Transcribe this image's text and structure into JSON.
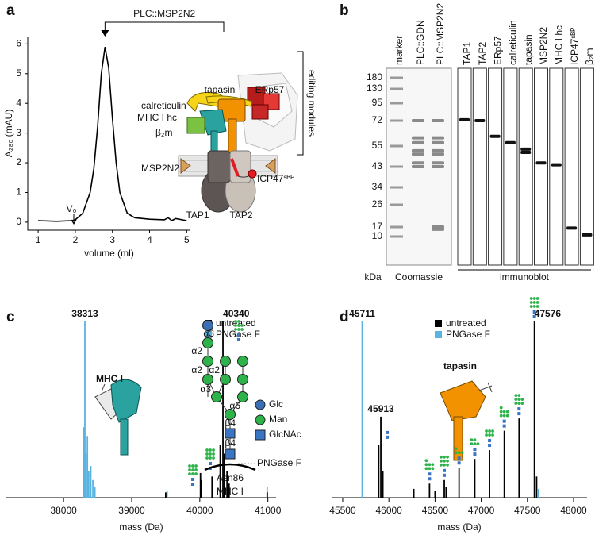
{
  "panels": [
    "a",
    "b",
    "c",
    "d"
  ],
  "chart_data": [
    {
      "type": "line",
      "x": [
        1,
        1.5,
        1.9,
        2.0,
        2.2,
        2.4,
        2.5,
        2.6,
        2.7,
        2.8,
        2.9,
        3.0,
        3.1,
        3.2,
        3.4,
        3.6,
        4.0,
        4.4,
        4.5,
        4.6,
        4.7,
        5.0
      ],
      "series": [
        {
          "color": "#000000",
          "values": [
            0.05,
            0.03,
            0.05,
            0.08,
            0.3,
            1.0,
            1.8,
            3.2,
            5.0,
            5.9,
            5.2,
            3.5,
            2.0,
            1.0,
            0.3,
            0.15,
            0.1,
            0.08,
            0.15,
            0.05,
            0.12,
            0.05
          ]
        }
      ],
      "xlim": [
        0.72,
        5.1
      ],
      "ylim": [
        -0.27,
        6.25
      ],
      "xticks": [
        1,
        2,
        3,
        4,
        5
      ],
      "yticks": [
        0,
        1,
        2,
        3,
        4,
        5,
        6
      ],
      "xlabel": "volume (ml)",
      "ylabel": "A₂₈₀ (mAU)",
      "annotations": [
        "PLC::MSP2N2",
        "V₀"
      ],
      "inset_labels": [
        "calreticulin",
        "tapasin",
        "ERp57",
        "MHC I hc",
        "β₂m",
        "MSP2N2",
        "ICP47ˢᴮᴾ",
        "TAP1",
        "TAP2",
        "editing modules"
      ]
    },
    {
      "type": "gel",
      "yticks": [
        180,
        130,
        95,
        72,
        55,
        43,
        34,
        26,
        17,
        10
      ],
      "ylabel": "kDa",
      "lanes": [
        "marker",
        "PLC::GDN",
        "PLC::MSP2N2",
        "TAP1",
        "TAP2",
        "ERp57",
        "calreticulin",
        "tapasin",
        "MSP2N2",
        "MHC I hc",
        "ICP47ˢᴮᴾ",
        "β₂m"
      ],
      "groups": [
        "Coomassie",
        "immunoblot"
      ],
      "lane_bands": [
        [],
        [
          72,
          60,
          57,
          52,
          50,
          45,
          43
        ],
        [
          72,
          60,
          57,
          52,
          50,
          45,
          43,
          17,
          15
        ],
        [
          73
        ],
        [
          72
        ],
        [
          61
        ],
        [
          57
        ],
        [
          53,
          51
        ],
        [
          45
        ],
        [
          44
        ],
        [
          16
        ],
        [
          11
        ]
      ]
    },
    {
      "type": "stem",
      "xlim": [
        37160,
        41120
      ],
      "ylim": [
        0,
        100
      ],
      "xticks": [
        38000,
        39000,
        40000,
        41000
      ],
      "xlabel": "mass (Da)",
      "series": [
        {
          "name": "untreated",
          "color": "#000000",
          "x": [
            39500,
            40010,
            40020,
            40180,
            40300,
            40340,
            40360,
            40400,
            40430,
            40990
          ],
          "values": [
            3,
            14,
            10,
            12,
            30,
            100,
            25,
            15,
            8,
            3
          ]
        },
        {
          "name": "PNGase F",
          "color": "#5bb3e0",
          "x": [
            38290,
            38300,
            38313,
            38330,
            38350,
            38370,
            38400,
            38430,
            38460,
            39520,
            40990
          ],
          "values": [
            20,
            40,
            100,
            25,
            35,
            15,
            18,
            10,
            6,
            4,
            6
          ]
        }
      ],
      "peak_labels": [
        38313,
        40340
      ],
      "inset_labels": [
        "MHC I",
        "Glc",
        "Man",
        "GlcNAc",
        "PNGase F",
        "Asn86",
        "MHC I"
      ],
      "linkages": [
        "α2",
        "α2",
        "α2",
        "α3",
        "α3",
        "α6",
        "β4",
        "β4"
      ]
    },
    {
      "type": "stem",
      "xlim": [
        45380,
        48146
      ],
      "ylim": [
        0,
        100
      ],
      "xticks": [
        45500,
        46000,
        46500,
        47000,
        47500,
        48000
      ],
      "xlabel": "mass (Da)",
      "series": [
        {
          "name": "untreated",
          "color": "#000000",
          "x": [
            45890,
            45913,
            45935,
            46270,
            46440,
            46500,
            46600,
            46620,
            46760,
            46930,
            47090,
            47250,
            47410,
            47576,
            47600
          ],
          "values": [
            30,
            46,
            15,
            5,
            8,
            4,
            10,
            6,
            17,
            22,
            27,
            38,
            45,
            100,
            12
          ]
        },
        {
          "name": "PNGase F",
          "color": "#5bb3e0",
          "x": [
            45711,
            47580,
            47620
          ],
          "values": [
            100,
            8,
            5
          ]
        }
      ],
      "peak_labels": [
        45711,
        47576,
        45913
      ],
      "inset_labels": [
        "tapasin"
      ]
    }
  ]
}
